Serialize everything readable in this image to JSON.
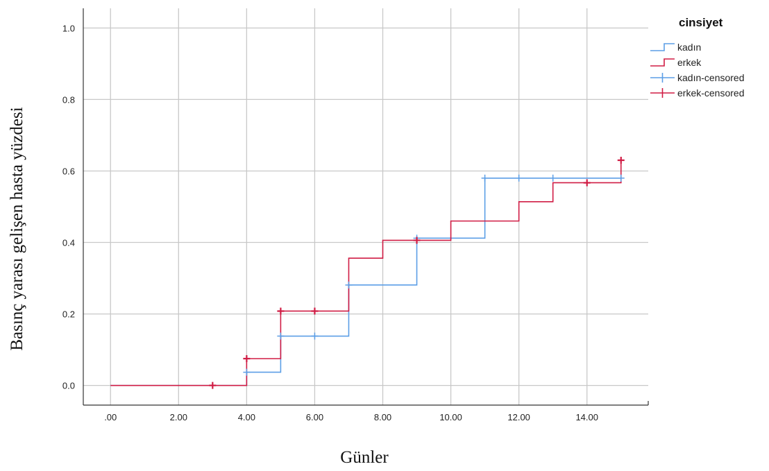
{
  "chart_data": {
    "type": "line",
    "subtype": "kaplan-meier-step",
    "xlabel": "Günler",
    "ylabel": "Basınç yarası gelişen hasta yüzdesi",
    "xlim": [
      -0.8,
      15.8
    ],
    "ylim": [
      -0.055,
      1.055
    ],
    "x_ticks": [
      0,
      2,
      4,
      6,
      8,
      10,
      12,
      14
    ],
    "x_tick_labels": [
      ".00",
      "2.00",
      "4.00",
      "6.00",
      "8.00",
      "10.00",
      "12.00",
      "14.00"
    ],
    "y_ticks": [
      0,
      0.2,
      0.4,
      0.6,
      0.8,
      1.0
    ],
    "y_tick_labels": [
      "0.0",
      "0.2",
      "0.4",
      "0.6",
      "0.8",
      "1.0"
    ],
    "grid": true,
    "legend": {
      "title": "cinsiyet",
      "position": "top-right",
      "entries": [
        "kadın",
        "erkek",
        "kadın-censored",
        "erkek-censored"
      ]
    },
    "series": [
      {
        "name": "kadın",
        "color": "#5b9ee6",
        "steps": [
          [
            0,
            0
          ],
          [
            4,
            0.037
          ],
          [
            5,
            0.138
          ],
          [
            7,
            0.281
          ],
          [
            9,
            0.412
          ],
          [
            11,
            0.58
          ],
          [
            15,
            0.58
          ]
        ],
        "censored": [
          [
            4,
            0.037
          ],
          [
            5,
            0.138
          ],
          [
            6,
            0.138
          ],
          [
            7,
            0.281
          ],
          [
            9,
            0.412
          ],
          [
            11,
            0.58
          ],
          [
            12,
            0.58
          ],
          [
            13,
            0.58
          ],
          [
            15,
            0.58
          ]
        ]
      },
      {
        "name": "erkek",
        "color": "#d01c44",
        "steps": [
          [
            0,
            0
          ],
          [
            4,
            0.075
          ],
          [
            5,
            0.208
          ],
          [
            7,
            0.356
          ],
          [
            8,
            0.406
          ],
          [
            10,
            0.46
          ],
          [
            12,
            0.514
          ],
          [
            13,
            0.567
          ],
          [
            15,
            0.63
          ]
        ],
        "censored": [
          [
            3,
            0
          ],
          [
            4,
            0.075
          ],
          [
            5,
            0.208
          ],
          [
            6,
            0.208
          ],
          [
            9,
            0.406
          ],
          [
            14,
            0.567
          ],
          [
            15,
            0.63
          ]
        ]
      }
    ]
  }
}
